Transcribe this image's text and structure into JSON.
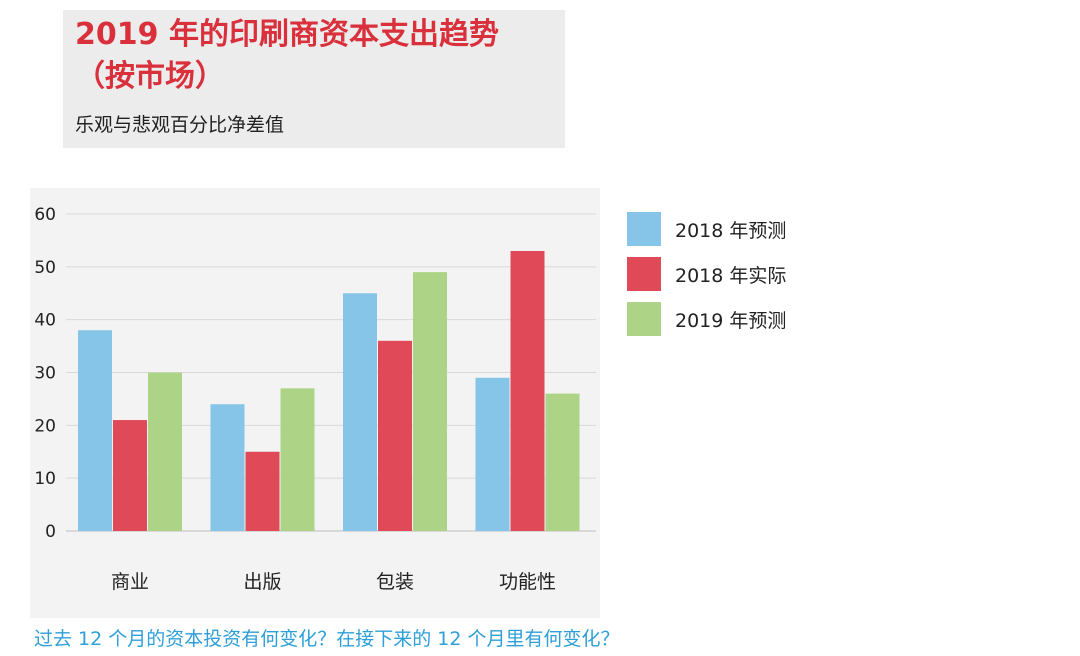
{
  "header": {
    "title": "2019 年的印刷商资本支出趋势（按市场）",
    "subtitle": "乐观与悲观百分比净差值"
  },
  "footer": {
    "question": "过去 12 个月的资本投资有何变化？在接下来的 12 个月里有何变化？"
  },
  "colors": {
    "title": "#d9303c",
    "question": "#2e9fd8"
  },
  "chart_data": {
    "type": "bar",
    "title": "2019 年的印刷商资本支出趋势（按市场）",
    "subtitle": "乐观与悲观百分比净差值",
    "xlabel": "",
    "ylabel": "",
    "ylim": [
      0,
      60
    ],
    "yticks": [
      0,
      10,
      20,
      30,
      40,
      50,
      60
    ],
    "grid": true,
    "legend_position": "right",
    "categories": [
      "商业",
      "出版",
      "包装",
      "功能性"
    ],
    "series": [
      {
        "name": "2018 年预测",
        "color": "#86c5e8",
        "values": [
          38,
          24,
          45,
          29
        ]
      },
      {
        "name": "2018 年实际",
        "color": "#e04a58",
        "values": [
          21,
          15,
          36,
          53
        ]
      },
      {
        "name": "2019 年预测",
        "color": "#add486",
        "values": [
          30,
          27,
          49,
          26
        ]
      }
    ]
  }
}
